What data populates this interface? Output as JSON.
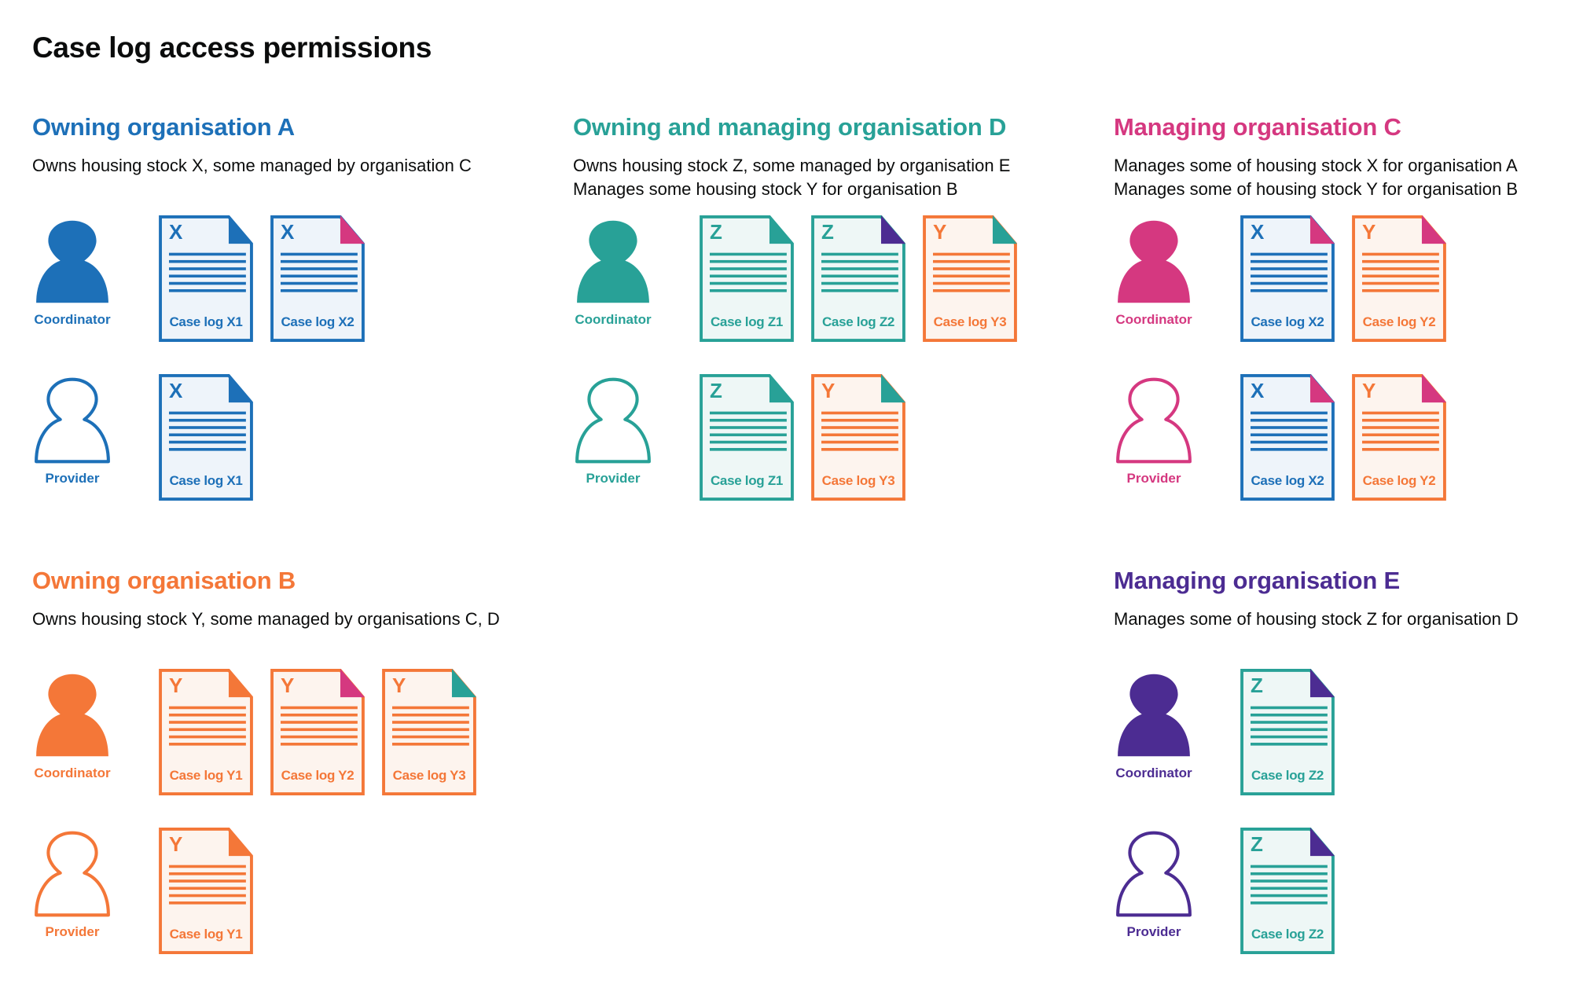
{
  "title": "Case log access permissions",
  "colors": {
    "blue": "#1d70b8",
    "teal": "#28a197",
    "pink": "#d53880",
    "orange": "#f47738",
    "purple": "#4c2c92",
    "text": "#0b0c0c"
  },
  "doc_colors": {
    "X": {
      "stroke": "#1d70b8",
      "fill": "#eef4fa"
    },
    "Y": {
      "stroke": "#f47738",
      "fill": "#fdf4ee"
    },
    "Z": {
      "stroke": "#28a197",
      "fill": "#eef7f6"
    }
  },
  "sections": [
    {
      "title": "Owning organisation A",
      "color": "#1d70b8",
      "description": [
        "Owns housing stock X, some managed by organisation C"
      ],
      "roles": [
        {
          "label": "Coordinator",
          "icon": "person-filled-icon",
          "docs": [
            {
              "letter": "X",
              "label": "Case log X1",
              "corner": "#1d70b8"
            },
            {
              "letter": "X",
              "label": "Case log X2",
              "corner": "#d53880"
            }
          ]
        },
        {
          "label": "Provider",
          "icon": "person-outline-icon",
          "docs": [
            {
              "letter": "X",
              "label": "Case log X1",
              "corner": "#1d70b8"
            }
          ]
        }
      ]
    },
    {
      "title": "Owning and managing organisation D",
      "color": "#28a197",
      "description": [
        "Owns housing stock Z, some managed by organisation E",
        "Manages some housing stock Y for organisation B"
      ],
      "roles": [
        {
          "label": "Coordinator",
          "icon": "person-filled-icon",
          "docs": [
            {
              "letter": "Z",
              "label": "Case log Z1",
              "corner": "#28a197"
            },
            {
              "letter": "Z",
              "label": "Case log Z2",
              "corner": "#4c2c92"
            },
            {
              "letter": "Y",
              "label": "Case log Y3",
              "corner": "#28a197"
            }
          ]
        },
        {
          "label": "Provider",
          "icon": "person-outline-icon",
          "docs": [
            {
              "letter": "Z",
              "label": "Case log Z1",
              "corner": "#28a197"
            },
            {
              "letter": "Y",
              "label": "Case log Y3",
              "corner": "#28a197"
            }
          ]
        }
      ]
    },
    {
      "title": "Managing organisation C",
      "color": "#d53880",
      "description": [
        "Manages some of housing stock X for organisation A",
        "Manages some of housing stock Y for organisation B"
      ],
      "roles": [
        {
          "label": "Coordinator",
          "icon": "person-filled-icon",
          "docs": [
            {
              "letter": "X",
              "label": "Case log X2",
              "corner": "#d53880"
            },
            {
              "letter": "Y",
              "label": "Case log Y2",
              "corner": "#d53880"
            }
          ]
        },
        {
          "label": "Provider",
          "icon": "person-outline-icon",
          "docs": [
            {
              "letter": "X",
              "label": "Case log X2",
              "corner": "#d53880"
            },
            {
              "letter": "Y",
              "label": "Case log Y2",
              "corner": "#d53880"
            }
          ]
        }
      ]
    },
    {
      "title": "Owning organisation B",
      "color": "#f47738",
      "description": [
        "Owns housing stock Y, some managed by organisations C, D"
      ],
      "roles": [
        {
          "label": "Coordinator",
          "icon": "person-filled-icon",
          "docs": [
            {
              "letter": "Y",
              "label": "Case log Y1",
              "corner": "#f47738"
            },
            {
              "letter": "Y",
              "label": "Case log Y2",
              "corner": "#d53880"
            },
            {
              "letter": "Y",
              "label": "Case log Y3",
              "corner": "#28a197"
            }
          ]
        },
        {
          "label": "Provider",
          "icon": "person-outline-icon",
          "docs": [
            {
              "letter": "Y",
              "label": "Case log Y1",
              "corner": "#f47738"
            }
          ]
        }
      ]
    },
    {
      "title": "Managing organisation E",
      "color": "#4c2c92",
      "description": [
        "Manages some of housing stock Z for organisation D"
      ],
      "roles": [
        {
          "label": "Coordinator",
          "icon": "person-filled-icon",
          "docs": [
            {
              "letter": "Z",
              "label": "Case log Z2",
              "corner": "#4c2c92"
            }
          ]
        },
        {
          "label": "Provider",
          "icon": "person-outline-icon",
          "docs": [
            {
              "letter": "Z",
              "label": "Case log Z2",
              "corner": "#4c2c92"
            }
          ]
        }
      ]
    }
  ]
}
